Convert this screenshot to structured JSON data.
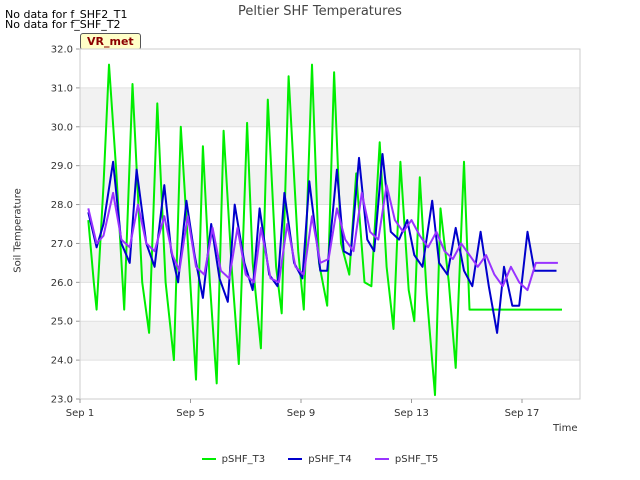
{
  "header": {
    "no_data_1": "No data for f_SHF2_T1",
    "no_data_2": "No data for f_SHF_T2",
    "badge": "VR_met"
  },
  "chart_data": {
    "type": "line",
    "title": "Peltier SHF Temperatures",
    "xlabel": "Time",
    "ylabel": "Soil Temperature",
    "x_tick_labels": [
      "Sep 1",
      "Sep 5",
      "Sep 9",
      "Sep 13",
      "Sep 17"
    ],
    "x_tick_days": [
      1,
      5,
      9,
      13,
      17
    ],
    "x_range_days": [
      1,
      19.1
    ],
    "ylim": [
      23.0,
      32.0
    ],
    "y_ticks": [
      "23.0",
      "24.0",
      "25.0",
      "26.0",
      "27.0",
      "28.0",
      "29.0",
      "30.0",
      "31.0",
      "32.0"
    ],
    "grid": "horizontal bands",
    "legend_position": "bottom",
    "series": [
      {
        "name": "pSHF_T3",
        "color": "#00ee00",
        "x": [
          1.3,
          1.5,
          1.6,
          1.85,
          2.05,
          2.3,
          2.6,
          2.9,
          3.25,
          3.5,
          3.8,
          4.1,
          4.4,
          4.65,
          4.95,
          5.2,
          5.45,
          5.7,
          5.95,
          6.2,
          6.5,
          6.75,
          7.05,
          7.25,
          7.55,
          7.8,
          8.1,
          8.3,
          8.55,
          8.9,
          9.1,
          9.4,
          9.65,
          9.95,
          10.2,
          10.45,
          10.75,
          11,
          11.3,
          11.55,
          11.85,
          12.1,
          12.35,
          12.6,
          12.9,
          13.1,
          13.3,
          13.55,
          13.85,
          14.05,
          14.35,
          14.6,
          14.9,
          15.1,
          15.4,
          15.6,
          15.8,
          16.1,
          16.3,
          16.5,
          16.8,
          17.05,
          17.3,
          17.55,
          17.75,
          17.95,
          18.2,
          18.45
        ],
        "y": [
          27.6,
          26.0,
          25.3,
          28.5,
          31.6,
          29.0,
          25.3,
          31.1,
          26.0,
          24.7,
          30.6,
          26.0,
          24.0,
          30.0,
          26.5,
          23.5,
          29.5,
          26.0,
          23.4,
          29.9,
          26.3,
          23.9,
          30.1,
          26.5,
          24.3,
          30.7,
          26.4,
          25.2,
          31.3,
          26.8,
          25.3,
          31.6,
          26.5,
          25.4,
          31.4,
          27.0,
          26.2,
          28.8,
          26.0,
          25.9,
          29.6,
          26.4,
          24.8,
          29.1,
          25.8,
          25.0,
          28.7,
          25.7,
          23.1,
          27.9,
          26.0,
          23.8,
          29.1,
          25.3,
          25.3,
          25.3,
          25.3,
          25.3,
          25.3,
          25.3,
          25.3,
          25.3,
          25.3,
          25.3,
          25.3,
          25.3,
          25.3,
          25.3
        ]
      },
      {
        "name": "pSHF_T4",
        "color": "#0000cc",
        "x": [
          1.3,
          1.6,
          1.85,
          2.2,
          2.5,
          2.8,
          3.05,
          3.4,
          3.7,
          4.05,
          4.3,
          4.55,
          4.85,
          5.15,
          5.45,
          5.75,
          6.05,
          6.35,
          6.6,
          6.95,
          7.25,
          7.5,
          7.85,
          8.15,
          8.4,
          8.75,
          9.05,
          9.3,
          9.7,
          9.95,
          10.3,
          10.55,
          10.8,
          11.1,
          11.4,
          11.65,
          11.95,
          12.25,
          12.55,
          12.85,
          13.1,
          13.4,
          13.75,
          14.0,
          14.3,
          14.6,
          14.9,
          15.2,
          15.5,
          15.8,
          16.1,
          16.35,
          16.65,
          16.9,
          17.2,
          17.45,
          17.7,
          17.95,
          18.25
        ],
        "y": [
          27.8,
          26.9,
          27.5,
          29.1,
          27.0,
          26.5,
          28.9,
          27.0,
          26.4,
          28.5,
          26.8,
          26.0,
          28.1,
          26.7,
          25.6,
          27.5,
          26.1,
          25.5,
          28.0,
          26.5,
          25.8,
          27.9,
          26.2,
          25.9,
          28.3,
          26.5,
          26.1,
          28.6,
          26.3,
          26.3,
          28.9,
          26.8,
          26.7,
          29.2,
          27.1,
          26.8,
          29.3,
          27.3,
          27.1,
          27.6,
          26.7,
          26.4,
          28.1,
          26.5,
          26.2,
          27.4,
          26.3,
          25.9,
          27.3,
          25.9,
          24.7,
          26.4,
          25.4,
          25.4,
          27.3,
          26.3,
          26.3,
          26.3,
          26.3
        ]
      },
      {
        "name": "pSHF_T5",
        "color": "#9933ff",
        "x": [
          1.3,
          1.6,
          1.85,
          2.2,
          2.5,
          2.8,
          3.1,
          3.4,
          3.7,
          4.05,
          4.35,
          4.6,
          4.9,
          5.2,
          5.5,
          5.8,
          6.1,
          6.4,
          6.7,
          7.0,
          7.3,
          7.55,
          7.9,
          8.2,
          8.5,
          8.8,
          9.1,
          9.4,
          9.7,
          10.0,
          10.3,
          10.6,
          10.9,
          11.2,
          11.5,
          11.8,
          12.1,
          12.4,
          12.7,
          13.0,
          13.3,
          13.6,
          13.9,
          14.2,
          14.5,
          14.8,
          15.1,
          15.4,
          15.7,
          16.0,
          16.3,
          16.6,
          16.9,
          17.2,
          17.5,
          17.8,
          18.1,
          18.3
        ],
        "y": [
          27.9,
          27.0,
          27.2,
          28.3,
          27.1,
          26.9,
          28.0,
          27.0,
          26.8,
          27.7,
          26.7,
          26.3,
          27.7,
          26.4,
          26.2,
          27.4,
          26.3,
          26.1,
          27.4,
          26.2,
          26.0,
          27.4,
          26.1,
          26.0,
          27.5,
          26.4,
          26.2,
          27.7,
          26.5,
          26.6,
          27.9,
          27.1,
          26.8,
          28.3,
          27.3,
          27.1,
          28.5,
          27.6,
          27.3,
          27.6,
          27.2,
          26.9,
          27.3,
          26.8,
          26.6,
          27.0,
          26.7,
          26.4,
          26.7,
          26.2,
          25.9,
          26.4,
          26.0,
          25.8,
          26.5,
          26.5,
          26.5,
          26.5
        ]
      }
    ]
  }
}
